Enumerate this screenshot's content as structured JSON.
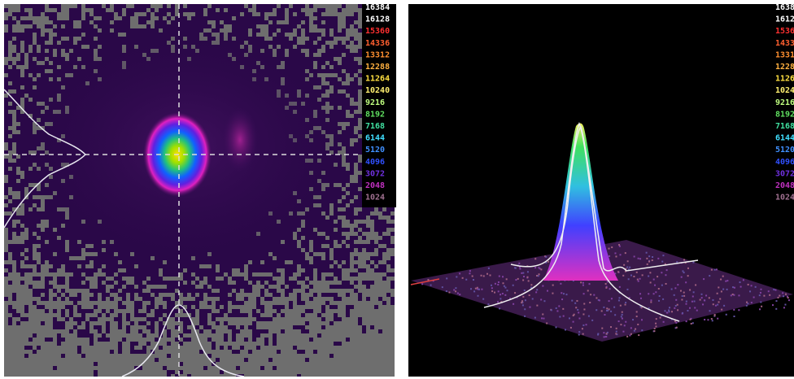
{
  "left_panel": {
    "scale_labels": [
      "16384",
      "16128",
      "15360",
      "14336",
      "13312",
      "12288",
      "11264",
      "10240",
      "9216",
      "8192",
      "7168",
      "6144",
      "5120",
      "4096",
      "3072",
      "2048",
      "1024"
    ]
  },
  "right_panel": {
    "scale_labels": [
      "16384",
      "16128",
      "15360",
      "14336",
      "13312",
      "12288",
      "11264",
      "10240",
      "9216",
      "8192",
      "7168",
      "6144",
      "5120",
      "4096",
      "3072",
      "2048",
      "1024"
    ]
  }
}
